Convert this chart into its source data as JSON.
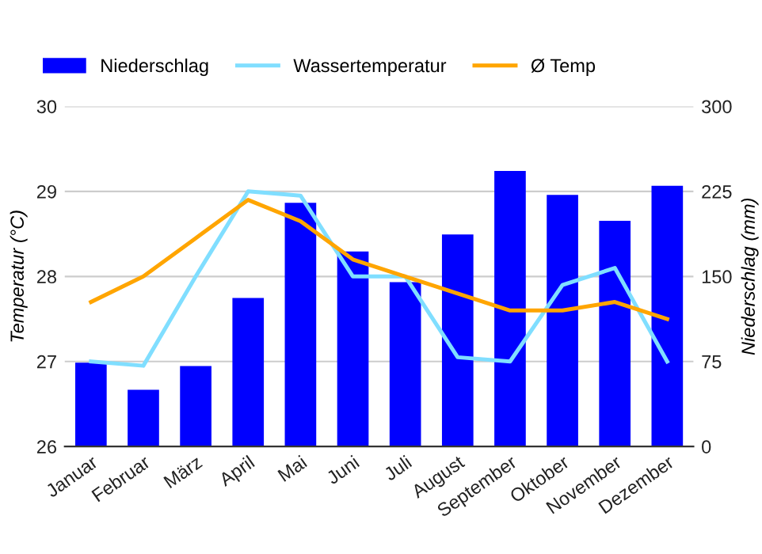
{
  "chart_data": {
    "type": "bar",
    "categories": [
      "Januar",
      "Februar",
      "März",
      "April",
      "Mai",
      "Juni",
      "Juli",
      "August",
      "September",
      "Oktober",
      "November",
      "Dezember"
    ],
    "series": [
      {
        "name": "Niederschlag",
        "axis": "y2",
        "color": "#0000ff",
        "values": [
          74,
          50,
          71,
          131,
          215,
          172,
          145,
          187,
          243,
          222,
          199,
          230
        ]
      },
      {
        "name": "Wassertemperatur",
        "type": "line",
        "color": "#80deff",
        "values": [
          27.0,
          26.95,
          28.0,
          29.0,
          28.95,
          28.0,
          28.0,
          27.05,
          27.0,
          27.9,
          28.1,
          27.0
        ]
      },
      {
        "name": "Ø Temp",
        "type": "line",
        "color": "#ffa500",
        "values": [
          27.7,
          28.0,
          28.45,
          28.9,
          28.65,
          28.2,
          28.0,
          27.8,
          27.6,
          27.6,
          27.7,
          27.5
        ]
      }
    ],
    "ylabel": "Temperatur (°C)",
    "y2label": "Niederschlag (mm)",
    "ylim": [
      26,
      30
    ],
    "yticks": [
      26,
      27,
      28,
      29,
      30
    ],
    "y2lim": [
      0,
      300
    ],
    "y2ticks": [
      0,
      75,
      150,
      225,
      300
    ],
    "grid": "y",
    "legend": "top left",
    "marker": "none",
    "line_style": "solid"
  }
}
